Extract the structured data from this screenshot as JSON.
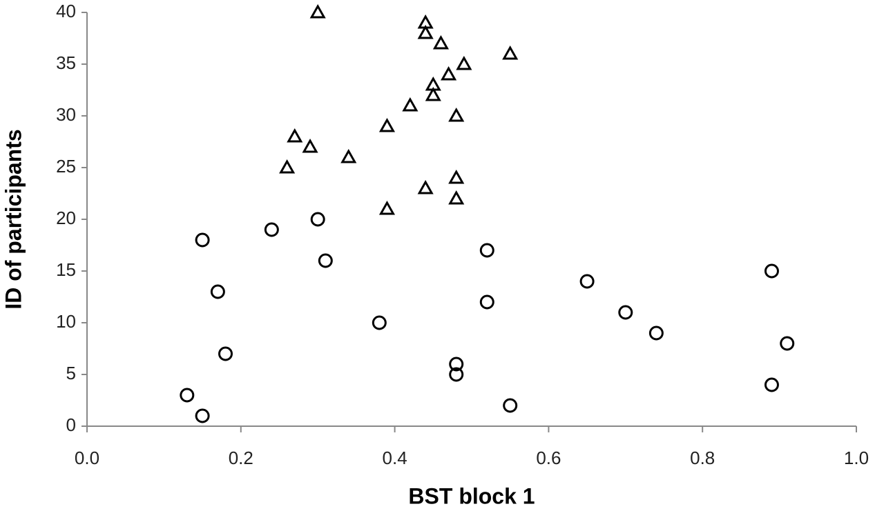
{
  "chart_data": {
    "type": "scatter",
    "x_label": "BST block 1",
    "y_label": "ID of participants",
    "xlim": [
      0,
      1
    ],
    "ylim": [
      0,
      40
    ],
    "xticks": [
      {
        "value": 0,
        "label": "0.0"
      },
      0.2,
      0.4,
      0.6,
      0.8,
      {
        "value": 1,
        "label": "1.0"
      }
    ],
    "yticks": [
      0,
      5,
      10,
      15,
      20,
      25,
      30,
      35,
      40
    ],
    "grid": false,
    "series": [
      {
        "marker": "circle",
        "color": "#000000",
        "x": [
          0.15,
          0.55,
          0.13,
          0.89,
          0.48,
          0.48,
          0.18,
          0.91,
          0.74,
          0.38,
          0.7,
          0.52,
          0.17,
          0.65,
          0.89,
          0.31,
          0.52,
          0.15,
          0.24,
          0.3
        ],
        "values": [
          1,
          2,
          3,
          4,
          5,
          6,
          7,
          8,
          9,
          10,
          11,
          12,
          13,
          14,
          15,
          16,
          17,
          18,
          19,
          20
        ]
      },
      {
        "marker": "triangle",
        "color": "#000000",
        "x": [
          0.39,
          0.48,
          0.44,
          0.48,
          0.26,
          0.34,
          0.29,
          0.27,
          0.39,
          0.48,
          0.42,
          0.45,
          0.45,
          0.47,
          0.49,
          0.55,
          0.46,
          0.44,
          0.44,
          0.3
        ],
        "values": [
          21,
          22,
          23,
          24,
          25,
          26,
          27,
          28,
          29,
          30,
          31,
          32,
          33,
          34,
          35,
          36,
          37,
          38,
          39,
          40
        ]
      }
    ]
  }
}
